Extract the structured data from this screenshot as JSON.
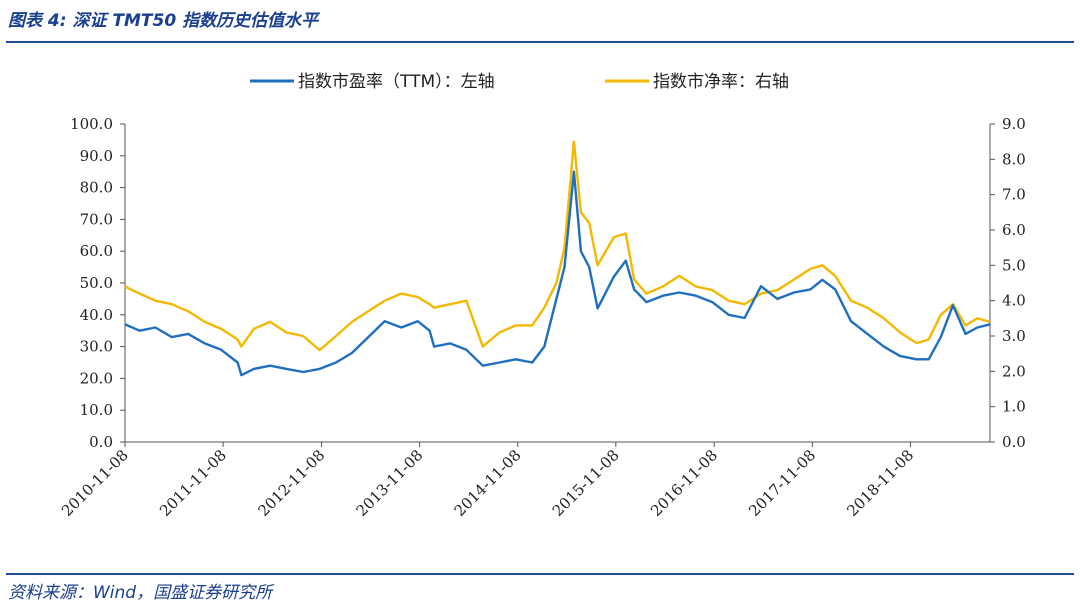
{
  "figure_title": "图表 4:  深证 TMT50 指数历史估值水平",
  "source_note": "资料来源：Wind，国盛证券研究所",
  "colors": {
    "pe": "#1f6fc0",
    "pb": "#f5b800",
    "rule": "#1f4e99",
    "axis": "#555555"
  },
  "chart_data": {
    "type": "line",
    "legend_position": "top-center",
    "grid": false,
    "x_tick_labels": [
      "2010-11-08",
      "2011-11-08",
      "2012-11-08",
      "2013-11-08",
      "2014-11-08",
      "2015-11-08",
      "2016-11-08",
      "2017-11-08",
      "2018-11-08"
    ],
    "x_range": [
      "2010-11-08",
      "2019-08-31"
    ],
    "y_left": {
      "ticks": [
        "0.0",
        "10.0",
        "20.0",
        "30.0",
        "40.0",
        "50.0",
        "60.0",
        "70.0",
        "80.0",
        "90.0",
        "100.0"
      ],
      "ylim": [
        0,
        100
      ]
    },
    "y_right": {
      "ticks": [
        "0.0",
        "1.0",
        "2.0",
        "3.0",
        "4.0",
        "5.0",
        "6.0",
        "7.0",
        "8.0",
        "9.0"
      ],
      "ylim": [
        0,
        9
      ]
    },
    "series": [
      {
        "name": "指数市盈率（TTM）：左轴",
        "axis": "left",
        "points": [
          [
            "2010-11-08",
            37
          ],
          [
            "2011-01-01",
            35
          ],
          [
            "2011-03-01",
            36
          ],
          [
            "2011-05-01",
            33
          ],
          [
            "2011-07-01",
            34
          ],
          [
            "2011-09-01",
            31
          ],
          [
            "2011-11-01",
            29
          ],
          [
            "2012-01-01",
            25
          ],
          [
            "2012-01-15",
            21
          ],
          [
            "2012-03-01",
            23
          ],
          [
            "2012-05-01",
            24
          ],
          [
            "2012-07-01",
            23
          ],
          [
            "2012-09-01",
            22
          ],
          [
            "2012-11-01",
            23
          ],
          [
            "2013-01-01",
            25
          ],
          [
            "2013-03-01",
            28
          ],
          [
            "2013-05-01",
            33
          ],
          [
            "2013-07-01",
            38
          ],
          [
            "2013-09-01",
            36
          ],
          [
            "2013-11-01",
            38
          ],
          [
            "2013-12-15",
            35
          ],
          [
            "2014-01-01",
            30
          ],
          [
            "2014-03-01",
            31
          ],
          [
            "2014-05-01",
            29
          ],
          [
            "2014-07-01",
            24
          ],
          [
            "2014-09-01",
            25
          ],
          [
            "2014-11-01",
            26
          ],
          [
            "2015-01-01",
            25
          ],
          [
            "2015-02-15",
            30
          ],
          [
            "2015-04-01",
            45
          ],
          [
            "2015-05-01",
            55
          ],
          [
            "2015-06-05",
            85
          ],
          [
            "2015-07-01",
            60
          ],
          [
            "2015-08-01",
            55
          ],
          [
            "2015-09-01",
            42
          ],
          [
            "2015-11-01",
            52
          ],
          [
            "2015-12-15",
            57
          ],
          [
            "2016-01-15",
            48
          ],
          [
            "2016-03-01",
            44
          ],
          [
            "2016-05-01",
            46
          ],
          [
            "2016-07-01",
            47
          ],
          [
            "2016-09-01",
            46
          ],
          [
            "2016-11-01",
            44
          ],
          [
            "2017-01-01",
            40
          ],
          [
            "2017-03-01",
            39
          ],
          [
            "2017-05-01",
            49
          ],
          [
            "2017-07-01",
            45
          ],
          [
            "2017-09-01",
            47
          ],
          [
            "2017-11-01",
            48
          ],
          [
            "2017-12-15",
            51
          ],
          [
            "2018-02-01",
            48
          ],
          [
            "2018-04-01",
            38
          ],
          [
            "2018-06-01",
            34
          ],
          [
            "2018-08-01",
            30
          ],
          [
            "2018-10-01",
            27
          ],
          [
            "2018-12-01",
            26
          ],
          [
            "2019-01-15",
            26
          ],
          [
            "2019-03-01",
            33
          ],
          [
            "2019-04-15",
            43
          ],
          [
            "2019-06-01",
            34
          ],
          [
            "2019-07-15",
            36
          ],
          [
            "2019-08-31",
            37
          ]
        ]
      },
      {
        "name": "指数市净率：右轴",
        "axis": "right",
        "points": [
          [
            "2010-11-08",
            4.4
          ],
          [
            "2011-01-01",
            4.2
          ],
          [
            "2011-03-01",
            4.0
          ],
          [
            "2011-05-01",
            3.9
          ],
          [
            "2011-07-01",
            3.7
          ],
          [
            "2011-09-01",
            3.4
          ],
          [
            "2011-11-01",
            3.2
          ],
          [
            "2012-01-01",
            2.9
          ],
          [
            "2012-01-15",
            2.7
          ],
          [
            "2012-03-01",
            3.2
          ],
          [
            "2012-05-01",
            3.4
          ],
          [
            "2012-07-01",
            3.1
          ],
          [
            "2012-09-01",
            3.0
          ],
          [
            "2012-11-01",
            2.6
          ],
          [
            "2013-01-01",
            3.0
          ],
          [
            "2013-03-01",
            3.4
          ],
          [
            "2013-05-01",
            3.7
          ],
          [
            "2013-07-01",
            4.0
          ],
          [
            "2013-09-01",
            4.2
          ],
          [
            "2013-11-01",
            4.1
          ],
          [
            "2013-12-15",
            3.9
          ],
          [
            "2014-01-01",
            3.8
          ],
          [
            "2014-03-01",
            3.9
          ],
          [
            "2014-05-01",
            4.0
          ],
          [
            "2014-07-01",
            2.7
          ],
          [
            "2014-09-01",
            3.1
          ],
          [
            "2014-11-01",
            3.3
          ],
          [
            "2015-01-01",
            3.3
          ],
          [
            "2015-02-15",
            3.8
          ],
          [
            "2015-04-01",
            4.5
          ],
          [
            "2015-05-01",
            5.5
          ],
          [
            "2015-06-05",
            8.5
          ],
          [
            "2015-07-01",
            6.5
          ],
          [
            "2015-08-01",
            6.2
          ],
          [
            "2015-09-01",
            5.0
          ],
          [
            "2015-11-01",
            5.8
          ],
          [
            "2015-12-15",
            5.9
          ],
          [
            "2016-01-15",
            4.6
          ],
          [
            "2016-03-01",
            4.2
          ],
          [
            "2016-05-01",
            4.4
          ],
          [
            "2016-07-01",
            4.7
          ],
          [
            "2016-09-01",
            4.4
          ],
          [
            "2016-11-01",
            4.3
          ],
          [
            "2017-01-01",
            4.0
          ],
          [
            "2017-03-01",
            3.9
          ],
          [
            "2017-05-01",
            4.2
          ],
          [
            "2017-07-01",
            4.3
          ],
          [
            "2017-09-01",
            4.6
          ],
          [
            "2017-11-01",
            4.9
          ],
          [
            "2017-12-15",
            5.0
          ],
          [
            "2018-02-01",
            4.7
          ],
          [
            "2018-04-01",
            4.0
          ],
          [
            "2018-06-01",
            3.8
          ],
          [
            "2018-08-01",
            3.5
          ],
          [
            "2018-10-01",
            3.1
          ],
          [
            "2018-12-01",
            2.8
          ],
          [
            "2019-01-15",
            2.9
          ],
          [
            "2019-03-01",
            3.6
          ],
          [
            "2019-04-15",
            3.9
          ],
          [
            "2019-06-01",
            3.3
          ],
          [
            "2019-07-15",
            3.5
          ],
          [
            "2019-08-31",
            3.4
          ]
        ]
      }
    ]
  }
}
